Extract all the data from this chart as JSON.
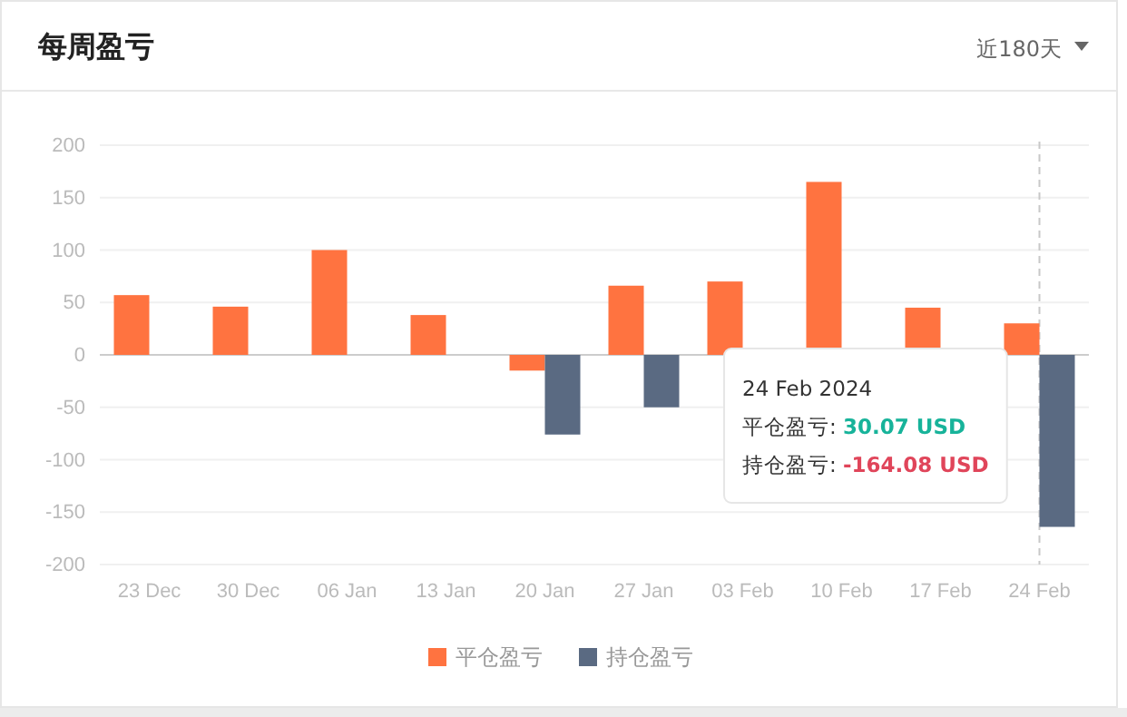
{
  "chart_data": {
    "type": "bar",
    "title": "每周盈亏",
    "categories": [
      "23 Dec",
      "30 Dec",
      "06 Jan",
      "13 Jan",
      "20 Jan",
      "27 Jan",
      "03 Feb",
      "10 Feb",
      "17 Feb",
      "24 Feb"
    ],
    "series": [
      {
        "name": "平仓盈亏",
        "color": "#ff7340",
        "values": [
          57,
          46,
          100,
          38,
          -15,
          66,
          70,
          165,
          45,
          30.07
        ]
      },
      {
        "name": "持仓盈亏",
        "color": "#5a6a82",
        "values": [
          null,
          null,
          null,
          null,
          -76,
          -50,
          null,
          null,
          null,
          -164.08
        ]
      }
    ],
    "ylim": [
      -200,
      200
    ],
    "yticks": [
      -200,
      -150,
      -100,
      -50,
      0,
      50,
      100,
      150,
      200
    ],
    "grid": "y",
    "legend": "bottom",
    "ref_lines": [
      {
        "axis": "x",
        "value": "24 Feb",
        "line_style": "dashed",
        "color": "#c8c8c8"
      }
    ],
    "annotations": [
      "近180天",
      "24 Feb 2024",
      "平仓盈亏: 30.07 USD",
      "持仓盈亏: -164.08 USD"
    ]
  }
}
